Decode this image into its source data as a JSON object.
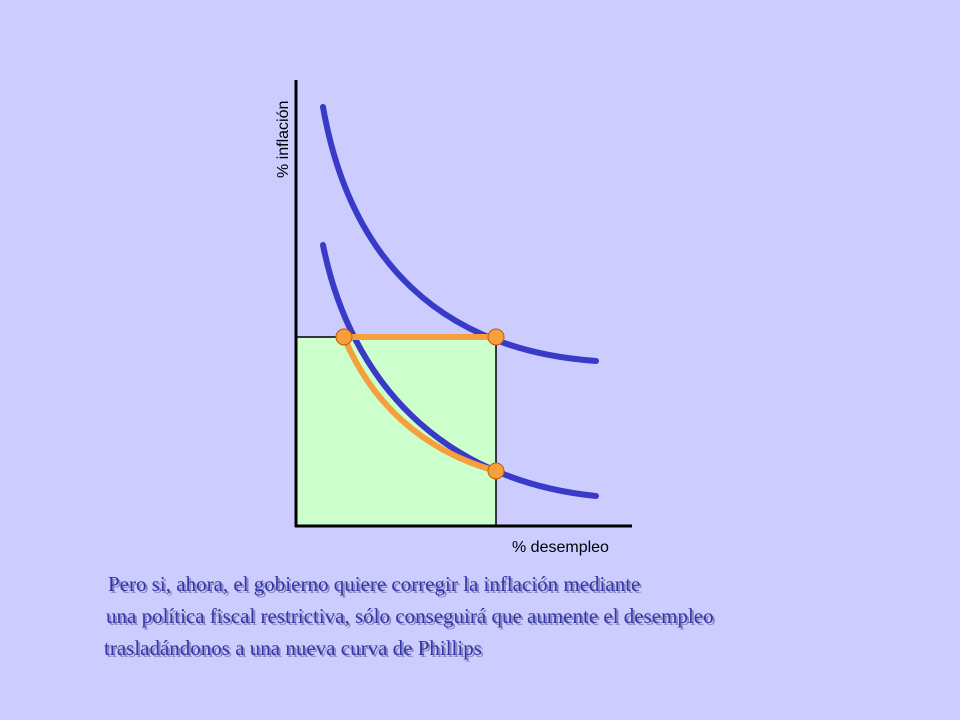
{
  "diagram": {
    "y_axis_label": "% inflación",
    "x_axis_label": "% desempleo"
  },
  "colors": {
    "background": "#ccccff",
    "curve": "#3a3ac8",
    "path": "#f5a03c",
    "region": "#ccffcc",
    "point": "#f5a03c"
  },
  "caption": {
    "line1": "Pero si, ahora, el gobierno quiere corregir la inflación mediante",
    "line2": "una política fiscal restrictiva, sólo conseguirá que aumente el desempleo",
    "line3": "trasladándonos a una nueva curva de Phillips"
  }
}
